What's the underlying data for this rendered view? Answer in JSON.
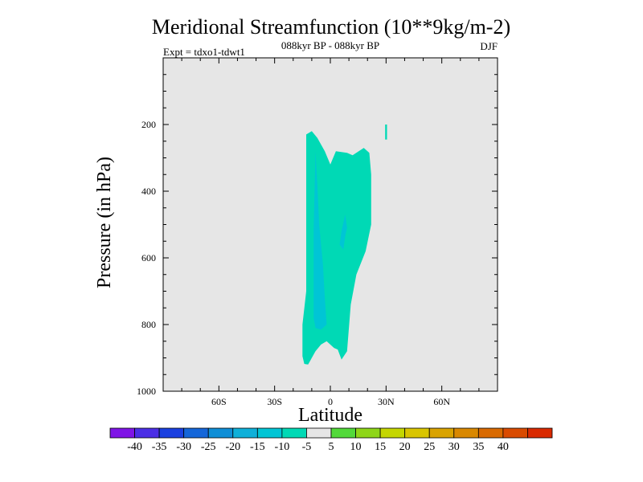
{
  "chart_data": {
    "type": "contour",
    "title": "Meridional Streamfunction (10**9kg/m-2)",
    "subtitle": "088kyr BP - 088kyr BP",
    "left_label": "Expt = tdxo1-tdwt1",
    "right_label": "DJF",
    "xlabel": "Latitude",
    "ylabel": "Pressure (in hPa)",
    "xlim": [
      -90,
      90
    ],
    "ylim": [
      1000,
      0
    ],
    "x_ticks": [
      {
        "value": -60,
        "label": "60S"
      },
      {
        "value": -30,
        "label": "30S"
      },
      {
        "value": 0,
        "label": "0"
      },
      {
        "value": 30,
        "label": "30N"
      },
      {
        "value": 60,
        "label": "60N"
      }
    ],
    "y_ticks": [
      {
        "value": 200,
        "label": "200"
      },
      {
        "value": 400,
        "label": "400"
      },
      {
        "value": 600,
        "label": "600"
      },
      {
        "value": 800,
        "label": "800"
      },
      {
        "value": 1000,
        "label": "1000"
      }
    ],
    "background_level": {
      "range": [
        -5,
        5
      ],
      "color": "#e6e6e6"
    },
    "regions": [
      {
        "name": "-10 to -5",
        "color": "#00d9b5",
        "points": [
          [
            -13,
            230
          ],
          [
            -10,
            220
          ],
          [
            -7,
            240
          ],
          [
            -3,
            280
          ],
          [
            0,
            320
          ],
          [
            3,
            280
          ],
          [
            9,
            285
          ],
          [
            12,
            292
          ],
          [
            18,
            270
          ],
          [
            21,
            285
          ],
          [
            22,
            350
          ],
          [
            22,
            500
          ],
          [
            19,
            580
          ],
          [
            14,
            650
          ],
          [
            11,
            740
          ],
          [
            9,
            880
          ],
          [
            6,
            905
          ],
          [
            4,
            875
          ],
          [
            2,
            870
          ],
          [
            -2,
            850
          ],
          [
            -5,
            860
          ],
          [
            -8,
            880
          ],
          [
            -10,
            900
          ],
          [
            -11,
            910
          ],
          [
            -12,
            920
          ],
          [
            -14,
            918
          ],
          [
            -15,
            895
          ],
          [
            -15,
            800
          ],
          [
            -13,
            700
          ],
          [
            -13,
            230
          ]
        ]
      },
      {
        "name": "-15 to -10",
        "color": "#00c5d5",
        "points": [
          [
            -8,
            280
          ],
          [
            -7,
            380
          ],
          [
            -6,
            500
          ],
          [
            -4,
            620
          ],
          [
            -3,
            720
          ],
          [
            -2,
            800
          ],
          [
            -5,
            815
          ],
          [
            -8,
            810
          ],
          [
            -9,
            780
          ],
          [
            -9,
            650
          ],
          [
            -9,
            520
          ],
          [
            -8,
            280
          ]
        ]
      },
      {
        "name": "-15 to -10 (inner)",
        "color": "#00c5d5",
        "points": [
          [
            6,
            520
          ],
          [
            5,
            560
          ],
          [
            7,
            575
          ],
          [
            8,
            535
          ],
          [
            9,
            510
          ],
          [
            8,
            470
          ],
          [
            6,
            520
          ]
        ]
      },
      {
        "name": "-10 to -5 (upper)",
        "color": "#00d9b5",
        "points": [
          [
            29.5,
            200
          ],
          [
            30.5,
            200
          ],
          [
            30.5,
            245
          ],
          [
            29.5,
            245
          ],
          [
            29.5,
            200
          ]
        ]
      }
    ],
    "colorbar": {
      "colors": [
        "#7f14e6",
        "#4b2ee6",
        "#1a40e0",
        "#1466d9",
        "#0f8ed6",
        "#0fb0d9",
        "#00c5d5",
        "#00d9b5",
        "#e6e6e6",
        "#52d93a",
        "#8ed618",
        "#c4d600",
        "#d9c500",
        "#d9a300",
        "#d98800",
        "#d96a00",
        "#d94b00",
        "#d92a00"
      ],
      "labels": [
        "-40",
        "-35",
        "-30",
        "-25",
        "-20",
        "-15",
        "-10",
        "-5",
        "5",
        "10",
        "15",
        "20",
        "25",
        "30",
        "35",
        "40"
      ]
    }
  }
}
